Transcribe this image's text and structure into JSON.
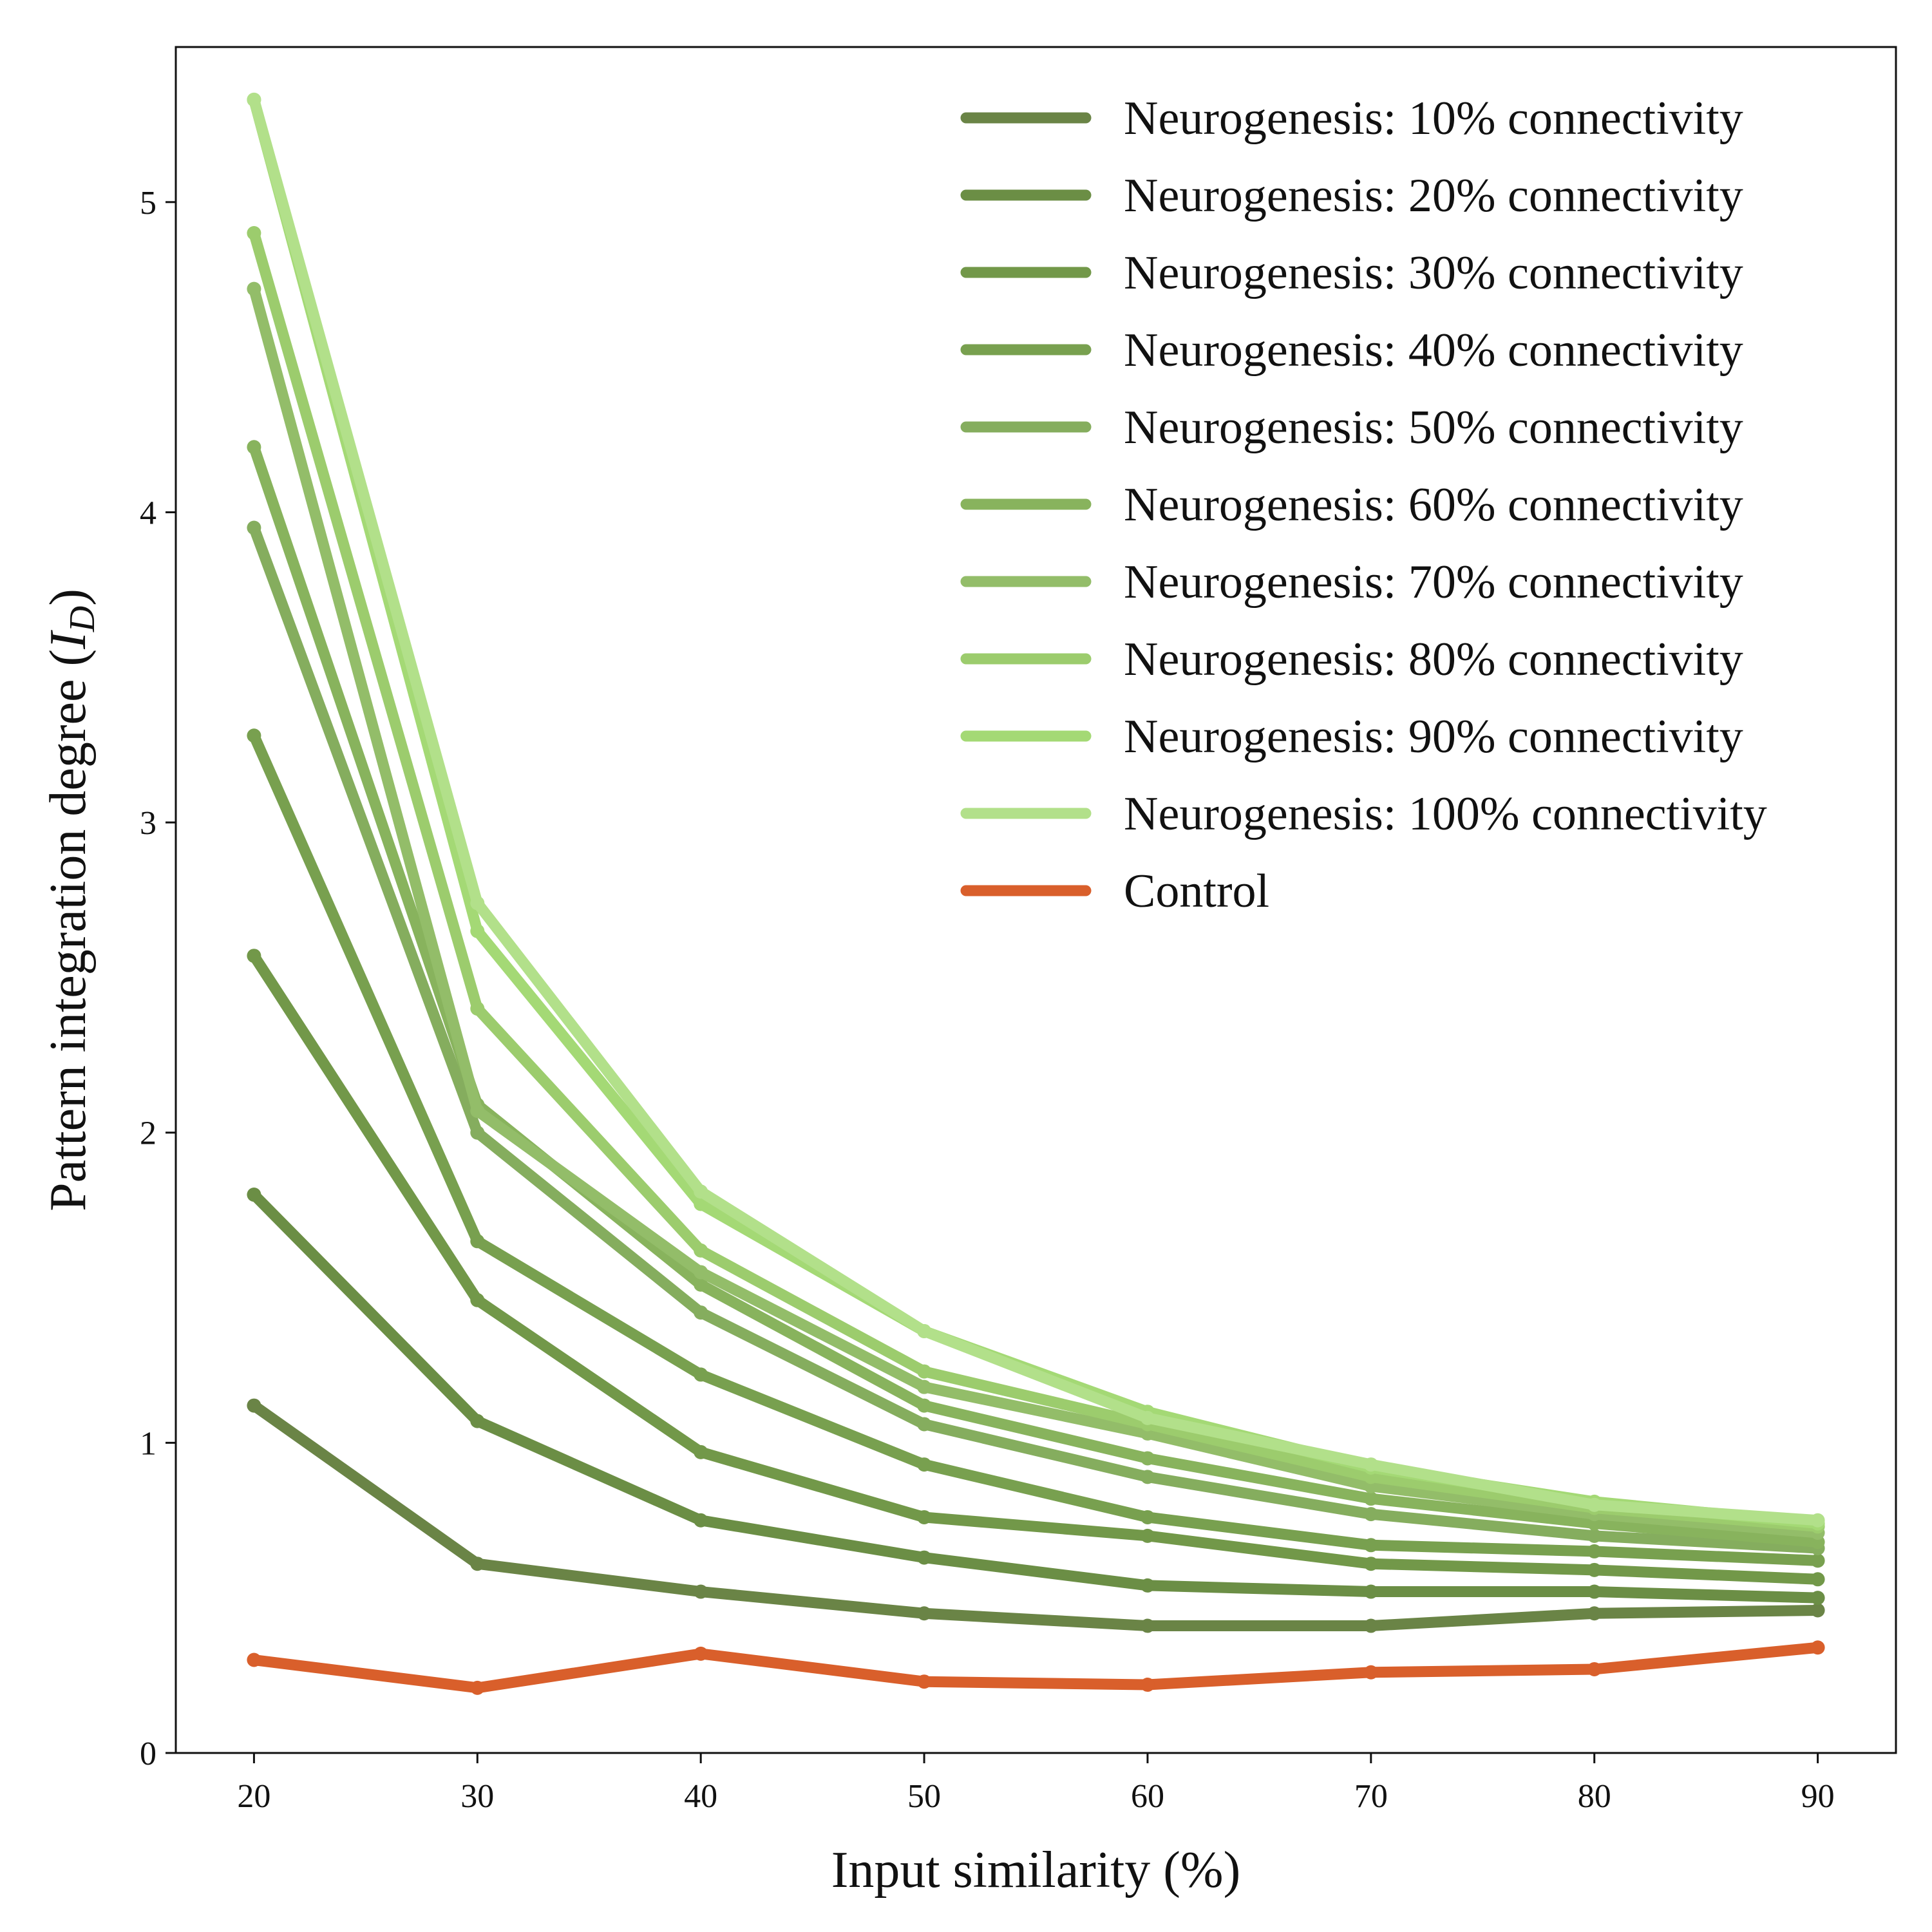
{
  "chart_data": {
    "type": "line",
    "title": "",
    "xlabel": "Input similarity (%)",
    "ylabel_main": "Pattern integration degree (",
    "ylabel_symbol": "I",
    "ylabel_sub": "D",
    "ylabel_close": ")",
    "x": [
      20,
      30,
      40,
      50,
      60,
      70,
      80,
      90
    ],
    "xlim": [
      16.5,
      93.5
    ],
    "ylim": [
      0,
      5.5
    ],
    "xticks": [
      "20",
      "30",
      "40",
      "50",
      "60",
      "70",
      "80",
      "90"
    ],
    "yticks": [
      "0",
      "1",
      "2",
      "3",
      "4",
      "5"
    ],
    "grid": false,
    "legend_position": "top-right",
    "series": [
      {
        "name": "Neurogenesis: 10% connectivity",
        "color": "#6a8446",
        "values": [
          1.12,
          0.61,
          0.52,
          0.45,
          0.41,
          0.41,
          0.45,
          0.46
        ]
      },
      {
        "name": "Neurogenesis: 20% connectivity",
        "color": "#6b8e45",
        "values": [
          1.8,
          1.07,
          0.75,
          0.63,
          0.54,
          0.52,
          0.52,
          0.5
        ]
      },
      {
        "name": "Neurogenesis: 30% connectivity",
        "color": "#729849",
        "values": [
          2.57,
          1.46,
          0.97,
          0.76,
          0.7,
          0.61,
          0.59,
          0.56
        ]
      },
      {
        "name": "Neurogenesis: 40% connectivity",
        "color": "#78a04f",
        "values": [
          3.28,
          1.65,
          1.22,
          0.93,
          0.76,
          0.67,
          0.65,
          0.62
        ]
      },
      {
        "name": "Neurogenesis: 50% connectivity",
        "color": "#85ad5e",
        "values": [
          3.95,
          2.0,
          1.42,
          1.06,
          0.89,
          0.77,
          0.7,
          0.66
        ]
      },
      {
        "name": "Neurogenesis: 60% connectivity",
        "color": "#88b35d",
        "values": [
          4.21,
          2.09,
          1.51,
          1.12,
          0.95,
          0.82,
          0.74,
          0.68
        ]
      },
      {
        "name": "Neurogenesis: 70% connectivity",
        "color": "#93bd69",
        "values": [
          4.72,
          2.07,
          1.55,
          1.18,
          1.03,
          0.86,
          0.77,
          0.71
        ]
      },
      {
        "name": "Neurogenesis: 80% connectivity",
        "color": "#9ccc6d",
        "values": [
          4.9,
          2.4,
          1.62,
          1.23,
          1.06,
          0.89,
          0.79,
          0.73
        ]
      },
      {
        "name": "Neurogenesis: 90% connectivity",
        "color": "#a4d975",
        "values": [
          5.33,
          2.65,
          1.77,
          1.36,
          1.1,
          0.92,
          0.81,
          0.74
        ]
      },
      {
        "name": "Neurogenesis: 100% connectivity",
        "color": "#b2e08a",
        "values": [
          5.33,
          2.74,
          1.81,
          1.36,
          1.08,
          0.93,
          0.8,
          0.75
        ]
      },
      {
        "name": "Control",
        "color": "#d95f2b",
        "values": [
          0.3,
          0.21,
          0.32,
          0.23,
          0.22,
          0.26,
          0.27,
          0.34
        ]
      }
    ]
  }
}
